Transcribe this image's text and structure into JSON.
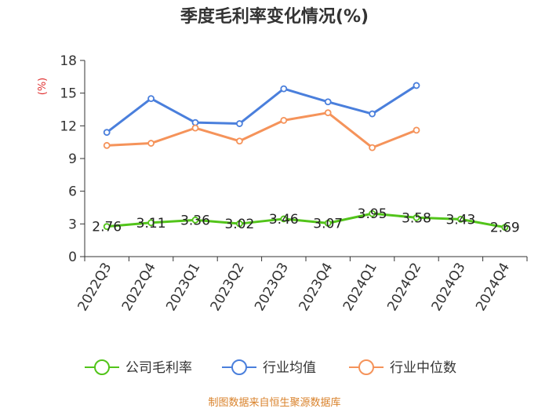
{
  "chart_data": {
    "type": "line",
    "title": "季度毛利率变化情况(%)",
    "ylabel": "(%)",
    "ylim": [
      0,
      18
    ],
    "yticks": [
      0,
      3,
      6,
      9,
      12,
      15,
      18
    ],
    "categories": [
      "2022Q3",
      "2022Q4",
      "2023Q1",
      "2023Q2",
      "2023Q3",
      "2023Q4",
      "2024Q1",
      "2024Q2",
      "2024Q3",
      "2024Q4"
    ],
    "grid": false,
    "legend_position": "bottom",
    "series": [
      {
        "name": "公司毛利率",
        "color": "#52c41a",
        "show_labels": true,
        "values": [
          2.76,
          3.11,
          3.36,
          3.02,
          3.46,
          3.07,
          3.95,
          3.58,
          3.43,
          2.69
        ],
        "labels": [
          "2.76",
          "3.11",
          "3.36",
          "3.02",
          "3.46",
          "3.07",
          "3.95",
          "3.58",
          "3.43",
          "2.69"
        ]
      },
      {
        "name": "行业均值",
        "color": "#4a7fdc",
        "show_labels": false,
        "values": [
          11.4,
          14.5,
          12.3,
          12.2,
          15.4,
          14.2,
          13.1,
          15.7,
          null,
          null
        ]
      },
      {
        "name": "行业中位数",
        "color": "#f5935a",
        "show_labels": false,
        "values": [
          10.2,
          10.4,
          11.8,
          10.6,
          12.5,
          13.2,
          10.0,
          11.6,
          null,
          null
        ]
      }
    ]
  },
  "source": "制图数据来自恒生聚源数据库"
}
